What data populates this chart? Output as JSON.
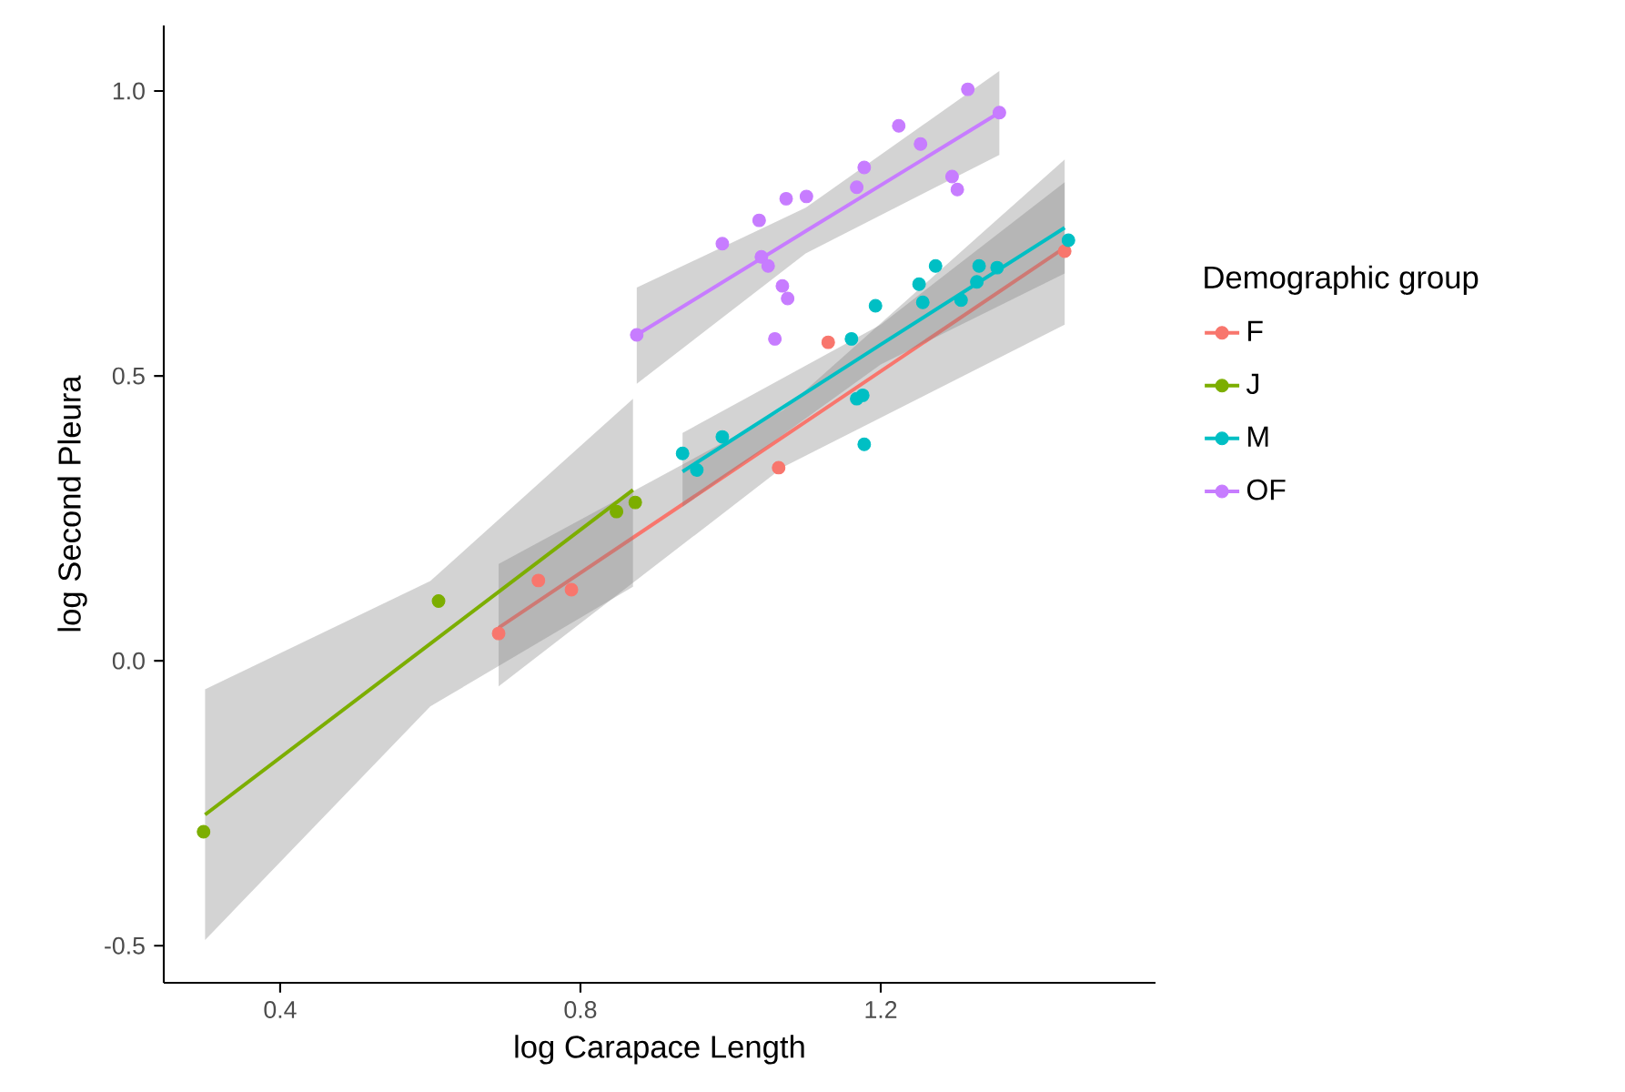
{
  "chart_data": {
    "type": "scatter",
    "xlabel": "log Carapace Length",
    "ylabel": "log Second Pleura",
    "legend_title": "Demographic group",
    "legend": "right",
    "grid": false,
    "xlim": [
      0.245,
      1.566
    ],
    "ylim": [
      -0.565,
      1.115
    ],
    "xticks": [
      0.4,
      0.8,
      1.2
    ],
    "yticks": [
      {
        "value": -0.5,
        "label": "-0.5"
      },
      {
        "value": 0,
        "label": "0.0"
      },
      {
        "value": 0.5,
        "label": "0.5"
      },
      {
        "value": 1,
        "label": "1.0"
      }
    ],
    "series": [
      {
        "name": "F",
        "marker": "circle",
        "color": "#f8766d",
        "x": [
          0.691,
          0.744,
          0.788,
          1.064,
          1.13,
          1.445
        ],
        "values": [
          0.048,
          0.141,
          0.125,
          0.339,
          0.559,
          0.719
        ]
      },
      {
        "name": "J",
        "marker": "circle",
        "color": "#7cae00",
        "x": [
          0.298,
          0.611,
          0.848,
          0.873
        ],
        "values": [
          -0.3,
          0.105,
          0.262,
          0.278
        ]
      },
      {
        "name": "M",
        "marker": "circle",
        "color": "#00bfc4",
        "x": [
          0.936,
          0.955,
          0.989,
          1.161,
          1.168,
          1.176,
          1.178,
          1.193,
          1.251,
          1.256,
          1.273,
          1.307,
          1.328,
          1.331,
          1.355,
          1.45
        ],
        "values": [
          0.364,
          0.335,
          0.393,
          0.565,
          0.46,
          0.466,
          0.38,
          0.623,
          0.661,
          0.629,
          0.693,
          0.633,
          0.665,
          0.693,
          0.69,
          0.738
        ]
      },
      {
        "name": "OF",
        "marker": "circle",
        "color": "#c77cff",
        "x": [
          0.875,
          0.989,
          1.038,
          1.041,
          1.05,
          1.069,
          1.076,
          1.059,
          1.074,
          1.101,
          1.168,
          1.178,
          1.224,
          1.253,
          1.295,
          1.302,
          1.316,
          1.358
        ],
        "values": [
          0.572,
          0.732,
          0.773,
          0.709,
          0.693,
          0.658,
          0.636,
          0.565,
          0.811,
          0.815,
          0.831,
          0.866,
          0.939,
          0.907,
          0.85,
          0.827,
          1.003,
          0.962
        ]
      },
      {
        "type": "line",
        "marker": "none",
        "color": "#f8766d",
        "x": [
          0.691,
          1.07,
          1.445
        ],
        "values": [
          0.058,
          0.393,
          0.725
        ],
        "lower": [
          -0.045,
          0.34,
          0.59
        ],
        "upper": [
          0.17,
          0.44,
          0.88
        ]
      },
      {
        "type": "line",
        "marker": "none",
        "color": "#7cae00",
        "x": [
          0.3,
          0.6,
          0.87
        ],
        "values": [
          -0.27,
          0.03,
          0.3
        ],
        "lower": [
          -0.49,
          -0.08,
          0.13
        ],
        "upper": [
          -0.05,
          0.14,
          0.46
        ]
      },
      {
        "type": "line",
        "marker": "none",
        "color": "#00bfc4",
        "x": [
          0.936,
          1.2,
          1.445
        ],
        "values": [
          0.332,
          0.555,
          0.76
        ],
        "lower": [
          0.27,
          0.52,
          0.68
        ],
        "upper": [
          0.4,
          0.59,
          0.84
        ]
      },
      {
        "type": "line",
        "marker": "none",
        "color": "#c77cff",
        "x": [
          0.875,
          1.1,
          1.358
        ],
        "values": [
          0.572,
          0.754,
          0.962
        ],
        "lower": [
          0.486,
          0.715,
          0.888
        ],
        "upper": [
          0.655,
          0.795,
          1.035
        ]
      }
    ]
  }
}
